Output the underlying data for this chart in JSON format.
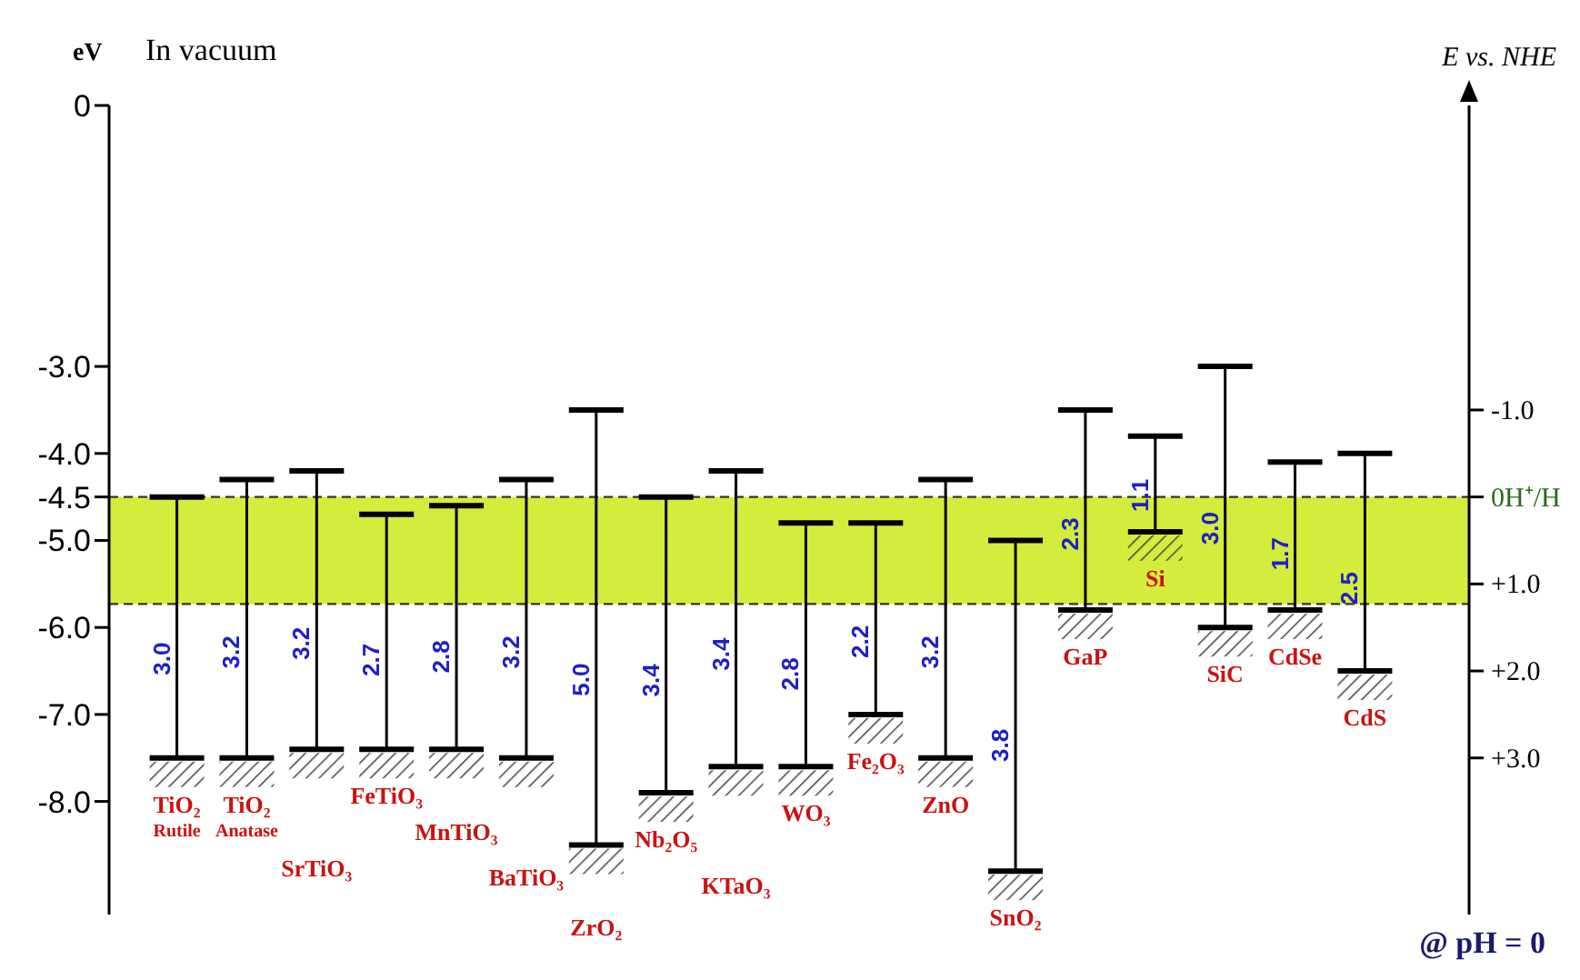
{
  "chart_data": {
    "type": "bar",
    "title": "In vacuum",
    "ylabel": "eV",
    "y2label": "E vs. NHE",
    "categories": [
      "TiO₂$_{Rutile}$",
      "TiO₂$_{Anatase}$",
      "SrTiO₃",
      "FeTiO₃",
      "MnTiO₃",
      "BaTiO₃",
      "ZrO₂",
      "Nb₂O₅",
      "KTaO₃",
      "WO₃",
      "Fe₂O₃",
      "ZnO",
      "SnO₂",
      "GaP",
      "Si",
      "SiC",
      "CdSe",
      "CdS"
    ],
    "base": [
      -7.5,
      -7.5,
      -7.4,
      -7.4,
      -7.4,
      -7.5,
      -8.5,
      -7.9,
      -7.6,
      -7.6,
      -7.0,
      -7.5,
      -8.8,
      -5.8,
      -4.9,
      -6.0,
      -5.8,
      -6.5
    ],
    "values": [
      3.0,
      3.2,
      3.2,
      2.7,
      2.8,
      3.2,
      5.0,
      3.4,
      3.4,
      2.8,
      2.2,
      3.2,
      3.8,
      2.3,
      1.1,
      3.0,
      1.7,
      2.5
    ],
    "value_labels": [
      "3.0",
      "3.2",
      "3.2",
      "2.7",
      "2.8",
      "3.2",
      "5.0",
      "3.4",
      "3.4",
      "2.8",
      "2.2",
      "3.2",
      "3.8",
      "2.3",
      "1.1",
      "3.0",
      "1.7",
      "2.5"
    ],
    "color": "#000000",
    "ylim": [
      -9.3,
      0
    ],
    "yticks": [
      0,
      {
        "value": -3,
        "label": "-3.0"
      },
      {
        "value": -4,
        "label": "-4.0"
      },
      -4.5,
      {
        "value": -5,
        "label": "-5.0"
      },
      {
        "value": -6,
        "label": "-6.0"
      },
      {
        "value": -7,
        "label": "-7.0"
      },
      {
        "value": -8,
        "label": "-8.0"
      }
    ],
    "y2lim": [
      4.8,
      -4.5
    ],
    "y2ticks": [
      {
        "value": -1,
        "label": "-1.0"
      },
      {
        "value": 0,
        "label": "0H⁺/H"
      },
      {
        "value": 1,
        "label": "+1.0"
      },
      {
        "value": 2,
        "label": "+2.0"
      },
      {
        "value": 3,
        "label": "+3.0"
      }
    ],
    "bands": [
      {
        "axis": "y",
        "from": -5.73,
        "to": -4.5,
        "color": "#d4ec3c"
      }
    ],
    "ref_lines": [
      {
        "axis": "y",
        "value": -4.5,
        "line_style": "dashed"
      },
      {
        "axis": "y",
        "value": -5.73,
        "line_style": "dashed"
      }
    ],
    "annotations": [
      "@ pH = 0"
    ]
  }
}
